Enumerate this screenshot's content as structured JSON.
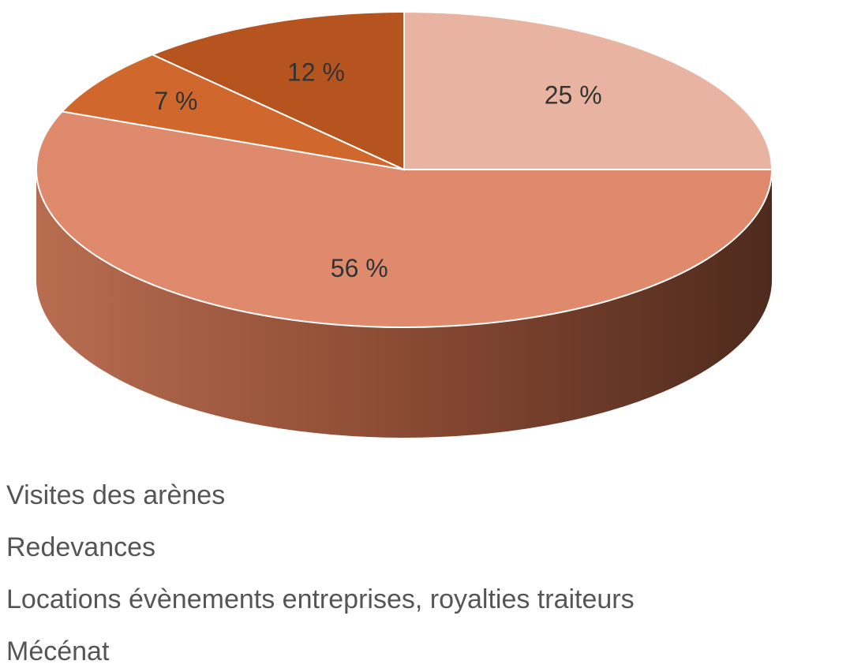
{
  "chart_data": {
    "type": "pie",
    "categories": [
      "Visites des arènes",
      "Redevances",
      "Locations évènements entreprises, royalties traiteurs",
      "Mécénat"
    ],
    "values": [
      25,
      56,
      7,
      12
    ],
    "value_labels": [
      "25 %",
      "56 %",
      "7 %",
      "12 %"
    ],
    "colors": [
      "#e8b3a0",
      "#df8a6c",
      "#d0682e",
      "#b5541f"
    ]
  }
}
